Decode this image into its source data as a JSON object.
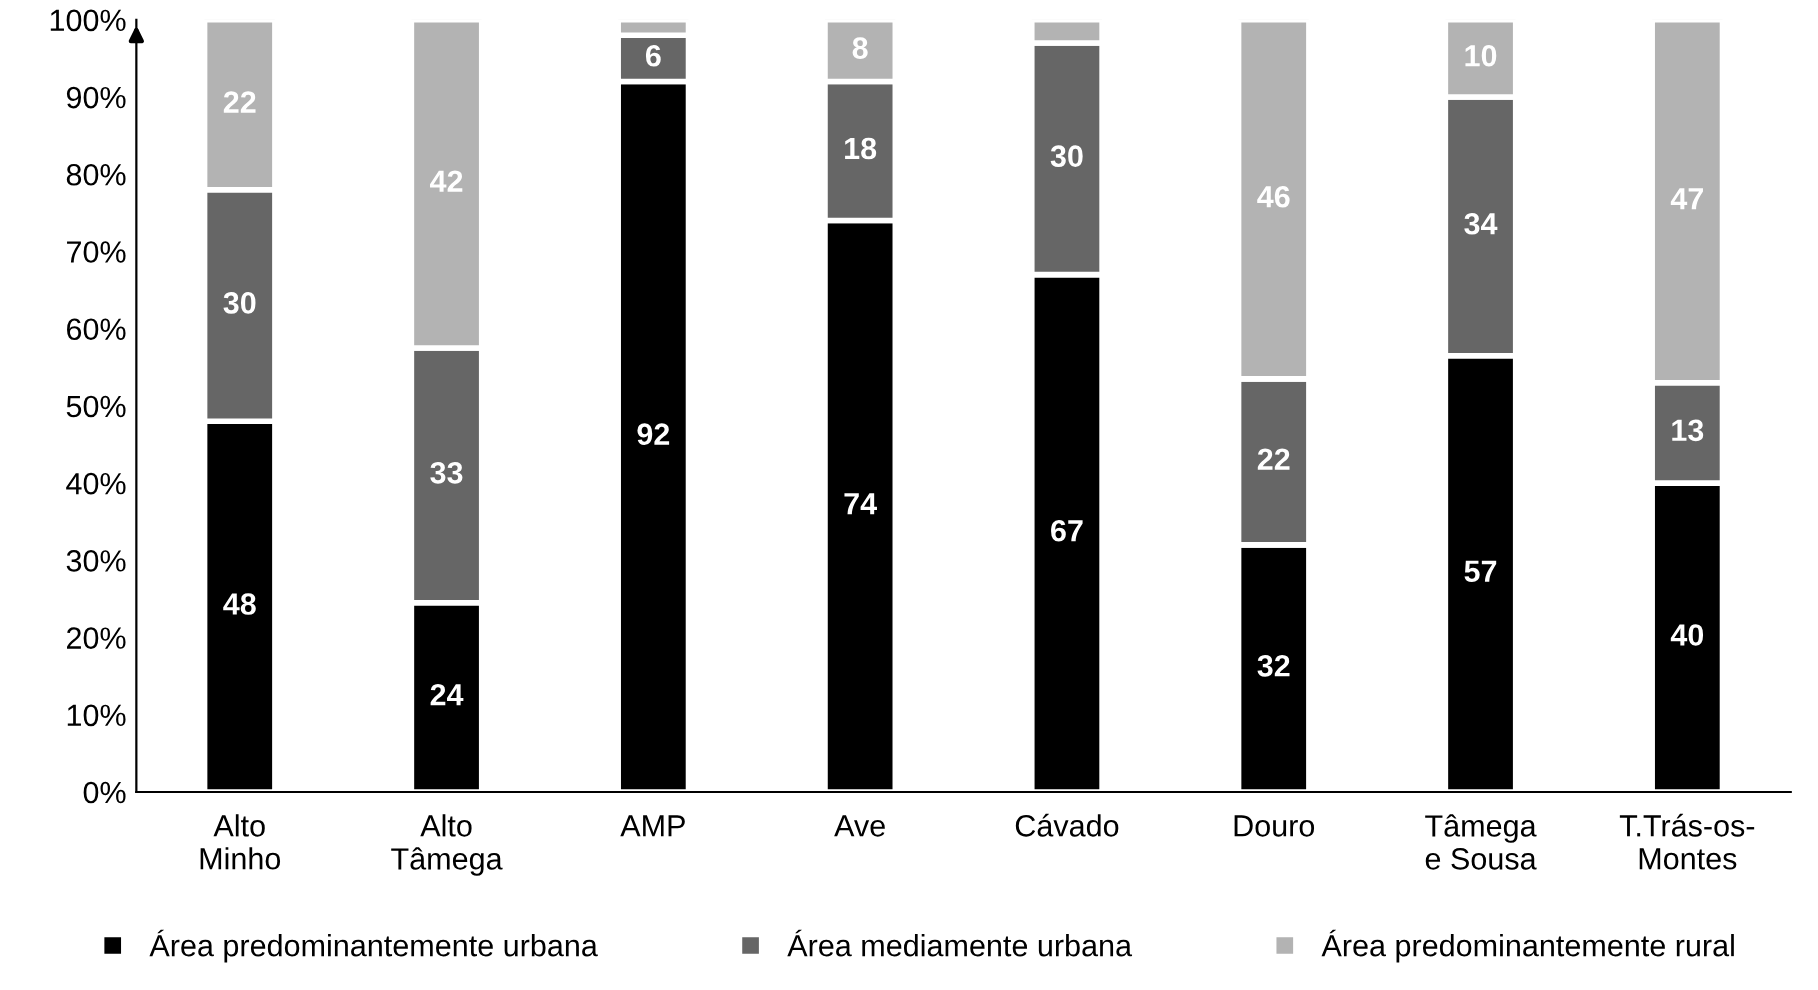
{
  "chart_data": {
    "type": "bar",
    "stacked": true,
    "categories": [
      "Alto\nMinho",
      "Alto\nTâmega",
      "AMP",
      "Ave",
      "Cávado",
      "Douro",
      "Tâmega\ne Sousa",
      "T.Trás-os-\nMontes"
    ],
    "series": [
      {
        "name": "Área predominantemente urbana",
        "color": "#000000",
        "values": [
          48,
          24.5,
          92,
          74,
          67,
          32,
          56.5,
          40
        ],
        "value_labels": [
          "48",
          "24",
          "92",
          "74",
          "67",
          "32",
          "57",
          "40"
        ]
      },
      {
        "name": "Área mediamente urbana",
        "color": "#666666",
        "values": [
          30,
          33,
          6,
          18,
          30,
          21.5,
          33.5,
          13
        ],
        "value_labels": [
          "30",
          "33",
          "6",
          "18",
          "30",
          "22",
          "34",
          "13"
        ]
      },
      {
        "name": "Área predominantemente rural",
        "color": "#b3b3b3",
        "values": [
          22,
          42.5,
          2,
          8,
          3,
          46.5,
          10,
          47
        ],
        "value_labels": [
          "22",
          "42",
          null,
          "8",
          null,
          "46",
          "10",
          "47"
        ]
      }
    ],
    "ylim": [
      0,
      100
    ],
    "yticks": [
      {
        "value": 0,
        "label": "0%"
      },
      {
        "value": 10,
        "label": "10%"
      },
      {
        "value": 20,
        "label": "20%"
      },
      {
        "value": 30,
        "label": "30%"
      },
      {
        "value": 40,
        "label": "40%"
      },
      {
        "value": 50,
        "label": "50%"
      },
      {
        "value": 60,
        "label": "60%"
      },
      {
        "value": 70,
        "label": "70%"
      },
      {
        "value": 80,
        "label": "80%"
      },
      {
        "value": 90,
        "label": "90%"
      },
      {
        "value": 100,
        "label": "100%"
      }
    ],
    "grid": false,
    "legend": "bottom"
  }
}
